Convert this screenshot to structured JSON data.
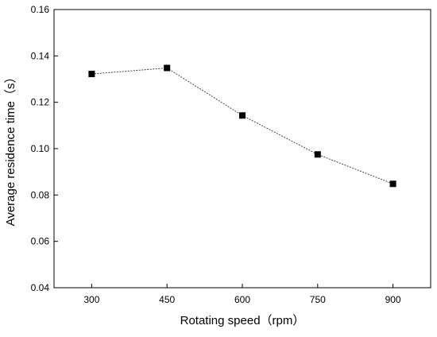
{
  "chart_data": {
    "type": "line",
    "xlabel": "Rotating speed（rpm）",
    "ylabel": "Average residence time（s）",
    "x": [
      300,
      450,
      600,
      750,
      900
    ],
    "y_ticks": [
      "0.04",
      "0.06",
      "0.08",
      "0.10",
      "0.12",
      "0.14",
      "0.16"
    ],
    "ylim": [
      0.04,
      0.16
    ],
    "series": [
      {
        "values": [
          0.1322,
          0.1348,
          0.1143,
          0.0975,
          0.0848
        ]
      }
    ],
    "marker": "square",
    "grid": false,
    "colors": {
      "line": "#333333",
      "marker": "#000000"
    }
  }
}
